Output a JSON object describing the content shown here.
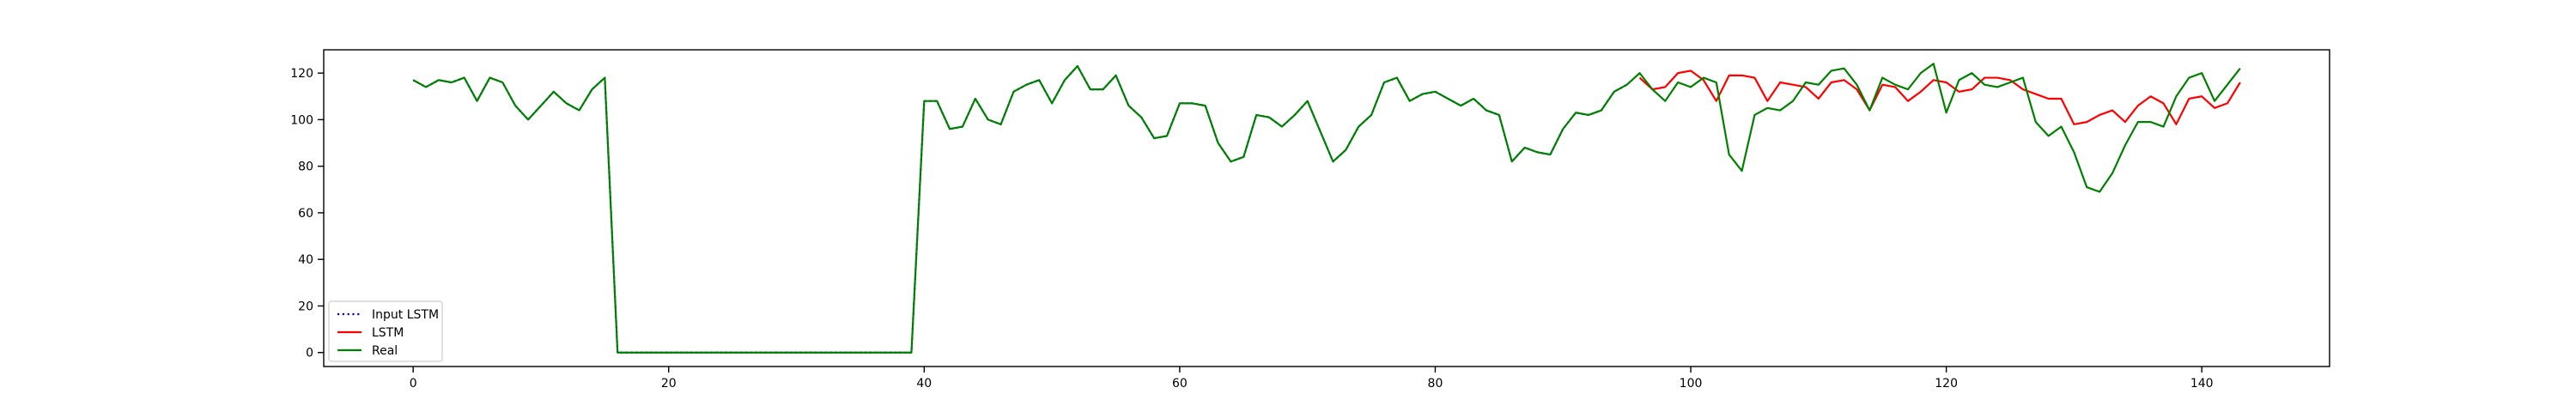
{
  "chart_data": {
    "type": "line",
    "title": "",
    "xlabel": "",
    "ylabel": "",
    "xlim": [
      -7,
      150
    ],
    "ylim": [
      -6,
      130
    ],
    "xticks": [
      0,
      20,
      40,
      60,
      80,
      100,
      120,
      140
    ],
    "yticks": [
      0,
      20,
      40,
      60,
      80,
      100,
      120
    ],
    "grid": false,
    "legend_position": "lower-left",
    "series": [
      {
        "name": "Input LSTM",
        "color": "#0000ff",
        "style": "dotted",
        "x": [
          0,
          1,
          2,
          3,
          4,
          5,
          6,
          7,
          8,
          9,
          10,
          11,
          12,
          13,
          14,
          15,
          16,
          17,
          18,
          19,
          20,
          21,
          22,
          23,
          24,
          25,
          26,
          27,
          28,
          29,
          30,
          31,
          32,
          33,
          34,
          35,
          36,
          37,
          38,
          39,
          40,
          41,
          42,
          43,
          44,
          45,
          46,
          47,
          48,
          49,
          50,
          51,
          52,
          53,
          54,
          55,
          56,
          57,
          58,
          59,
          60,
          61,
          62,
          63,
          64,
          65,
          66,
          67,
          68,
          69,
          70,
          71,
          72,
          73,
          74,
          75,
          76,
          77,
          78,
          79,
          80,
          81,
          82,
          83,
          84,
          85,
          86,
          87,
          88,
          89,
          90,
          91,
          92,
          93,
          94,
          95
        ],
        "y": [
          117,
          114,
          117,
          116,
          118,
          108,
          118,
          116,
          106,
          100,
          106,
          112,
          107,
          104,
          113,
          118,
          0,
          0,
          0,
          0,
          0,
          0,
          0,
          0,
          0,
          0,
          0,
          0,
          0,
          0,
          0,
          0,
          0,
          0,
          0,
          0,
          0,
          0,
          0,
          0,
          108,
          108,
          96,
          97,
          109,
          100,
          98,
          112,
          115,
          117,
          107,
          117,
          123,
          113,
          113,
          119,
          106,
          101,
          92,
          93,
          107,
          107,
          106,
          90,
          82,
          84,
          102,
          101,
          97,
          102,
          108,
          95,
          82,
          87,
          97,
          102,
          116,
          118,
          108,
          111,
          112,
          109,
          106,
          109,
          104,
          102,
          82,
          88,
          86,
          85,
          96,
          103,
          102,
          104,
          112,
          115
        ]
      },
      {
        "name": "LSTM",
        "color": "#ff0000",
        "style": "solid",
        "x": [
          96,
          97,
          98,
          99,
          100,
          101,
          102,
          103,
          104,
          105,
          106,
          107,
          108,
          109,
          110,
          111,
          112,
          113,
          114,
          115,
          116,
          117,
          118,
          119,
          120,
          121,
          122,
          123,
          124,
          125,
          126,
          127,
          128,
          129,
          130,
          131,
          132,
          133,
          134,
          135,
          136,
          137,
          138,
          139,
          140,
          141,
          142,
          143
        ],
        "y": [
          118,
          113,
          114,
          120,
          121,
          117,
          108,
          119,
          119,
          118,
          108,
          116,
          115,
          114,
          109,
          116,
          117,
          113,
          104,
          115,
          114,
          108,
          112,
          117,
          116,
          112,
          113,
          118,
          118,
          117,
          113,
          111,
          109,
          109,
          98,
          99,
          102,
          104,
          99,
          106,
          110,
          107,
          98,
          109,
          110,
          105,
          107,
          116
        ]
      },
      {
        "name": "Real",
        "color": "#008000",
        "style": "solid",
        "x": [
          0,
          1,
          2,
          3,
          4,
          5,
          6,
          7,
          8,
          9,
          10,
          11,
          12,
          13,
          14,
          15,
          16,
          17,
          18,
          19,
          20,
          21,
          22,
          23,
          24,
          25,
          26,
          27,
          28,
          29,
          30,
          31,
          32,
          33,
          34,
          35,
          36,
          37,
          38,
          39,
          40,
          41,
          42,
          43,
          44,
          45,
          46,
          47,
          48,
          49,
          50,
          51,
          52,
          53,
          54,
          55,
          56,
          57,
          58,
          59,
          60,
          61,
          62,
          63,
          64,
          65,
          66,
          67,
          68,
          69,
          70,
          71,
          72,
          73,
          74,
          75,
          76,
          77,
          78,
          79,
          80,
          81,
          82,
          83,
          84,
          85,
          86,
          87,
          88,
          89,
          90,
          91,
          92,
          93,
          94,
          95,
          96,
          97,
          98,
          99,
          100,
          101,
          102,
          103,
          104,
          105,
          106,
          107,
          108,
          109,
          110,
          111,
          112,
          113,
          114,
          115,
          116,
          117,
          118,
          119,
          120,
          121,
          122,
          123,
          124,
          125,
          126,
          127,
          128,
          129,
          130,
          131,
          132,
          133,
          134,
          135,
          136,
          137,
          138,
          139,
          140,
          141,
          142,
          143
        ],
        "y": [
          117,
          114,
          117,
          116,
          118,
          108,
          118,
          116,
          106,
          100,
          106,
          112,
          107,
          104,
          113,
          118,
          0,
          0,
          0,
          0,
          0,
          0,
          0,
          0,
          0,
          0,
          0,
          0,
          0,
          0,
          0,
          0,
          0,
          0,
          0,
          0,
          0,
          0,
          0,
          0,
          108,
          108,
          96,
          97,
          109,
          100,
          98,
          112,
          115,
          117,
          107,
          117,
          123,
          113,
          113,
          119,
          106,
          101,
          92,
          93,
          107,
          107,
          106,
          90,
          82,
          84,
          102,
          101,
          97,
          102,
          108,
          95,
          82,
          87,
          97,
          102,
          116,
          118,
          108,
          111,
          112,
          109,
          106,
          109,
          104,
          102,
          82,
          88,
          86,
          85,
          96,
          103,
          102,
          104,
          112,
          115,
          120,
          113,
          108,
          116,
          114,
          118,
          116,
          85,
          78,
          102,
          105,
          104,
          108,
          116,
          115,
          121,
          122,
          115,
          104,
          118,
          115,
          113,
          120,
          124,
          103,
          117,
          120,
          115,
          114,
          116,
          118,
          99,
          93,
          97,
          86,
          71,
          69,
          77,
          89,
          99,
          99,
          97,
          110,
          118,
          120,
          108,
          115,
          122
        ]
      }
    ]
  }
}
